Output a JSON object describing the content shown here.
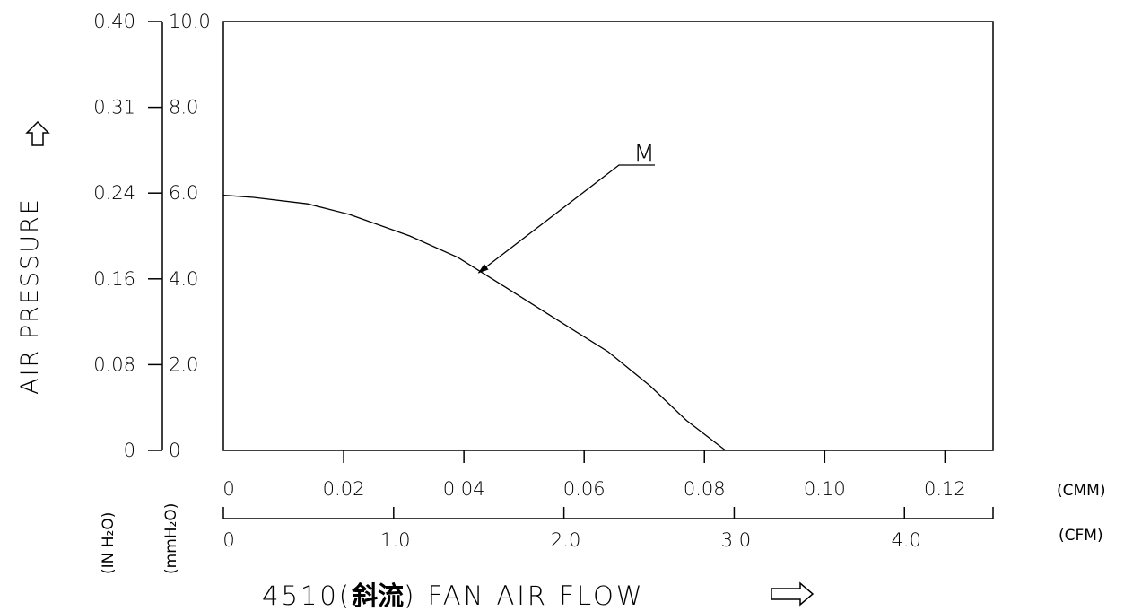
{
  "chart_data": {
    "type": "line",
    "title": "4510(斜流) FAN AIR FLOW",
    "title_parts": {
      "model": "4510(",
      "kanji": "斜流",
      "rest": ") FAN AIR FLOW"
    },
    "ylabel": "AIR PRESSURE",
    "y_units_inH2O": "(IN H₂O)",
    "y_units_mmH2O": "(mmH₂O)",
    "x_units_cmm": "(CMM)",
    "x_units_cfm": "(CFM)",
    "xlim_cmm": [
      0,
      0.128
    ],
    "ylim_mmH2O": [
      0,
      10.0
    ],
    "y_ticks_mmH2O": [
      "0",
      "2.0",
      "4.0",
      "6.0",
      "8.0",
      "10.0"
    ],
    "y_ticks_inH2O": [
      "0",
      "0.08",
      "0.16",
      "0.24",
      "0.31",
      "0.40"
    ],
    "x_ticks_cmm": [
      "0",
      "0.02",
      "0.04",
      "0.06",
      "0.08",
      "0.10",
      "0.12"
    ],
    "x_ticks_cfm": [
      "0",
      "1.0",
      "2.0",
      "3.0",
      "4.0"
    ],
    "grid": false,
    "series": [
      {
        "name": "M",
        "x": [
          0,
          0.005,
          0.014,
          0.021,
          0.031,
          0.039,
          0.047,
          0.056,
          0.064,
          0.071,
          0.077,
          0.0835
        ],
        "y": [
          5.95,
          5.9,
          5.75,
          5.5,
          5.0,
          4.5,
          3.8,
          3.0,
          2.3,
          1.5,
          0.7,
          0.0
        ]
      }
    ],
    "annotations": [
      {
        "text": "M",
        "series": "M",
        "points_to_x": 0.042,
        "points_to_y": 4.1
      }
    ]
  }
}
